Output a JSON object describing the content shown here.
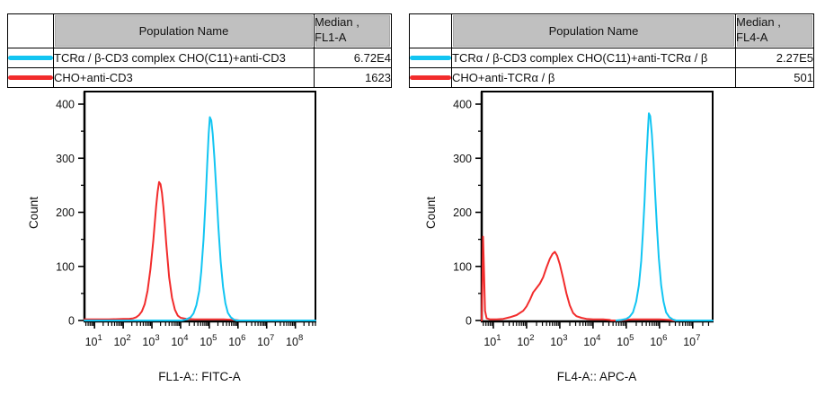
{
  "colors": {
    "cyan_series": "#12C5F2",
    "red_series": "#F22C2C",
    "table_header_bg": "#C0C0C0",
    "axis": "#000000"
  },
  "panels": [
    {
      "table": {
        "population_header": "Population Name",
        "median_header_line1": "Median ,",
        "median_header_line2": "FL1-A",
        "rows": [
          {
            "color": "#12C5F2",
            "population": "TCRα / β-CD3 complex CHO(C11)+anti-CD3",
            "median": "6.72E4"
          },
          {
            "color": "#F22C2C",
            "population": "CHO+anti-CD3",
            "median": "1623"
          }
        ]
      }
    },
    {
      "table": {
        "population_header": "Population Name",
        "median_header_line1": "Median ,",
        "median_header_line2": "FL4-A",
        "rows": [
          {
            "color": "#12C5F2",
            "population": "TCRα / β-CD3 complex CHO(C11)+anti-TCRα / β",
            "median": "2.27E5"
          },
          {
            "color": "#F22C2C",
            "population": "CHO+anti-TCRα / β",
            "median": "501"
          }
        ]
      }
    }
  ],
  "chart_data": [
    {
      "type": "line",
      "subtype": "flow-histogram",
      "xlabel": "FL1-A:: FITC-A",
      "ylabel": "Count",
      "x_scale": "log10",
      "x_log_range": [
        0.65,
        8.7
      ],
      "x_decades": [
        1,
        2,
        3,
        4,
        5,
        6,
        7,
        8
      ],
      "ylim": [
        0,
        400
      ],
      "yticks": [
        0,
        100,
        200,
        300,
        400
      ],
      "y_minor_ticks": [
        50,
        150,
        250,
        350
      ],
      "grid": false,
      "legend": "table-above",
      "series": [
        {
          "id": "red",
          "name": "CHO+anti-CD3",
          "color": "#F22C2C",
          "median": "1623",
          "peak": {
            "log_x": 3.25,
            "count": 256
          },
          "points": [
            [
              0.65,
              2
            ],
            [
              1.0,
              2
            ],
            [
              1.5,
              2
            ],
            [
              2.0,
              3
            ],
            [
              2.2,
              3
            ],
            [
              2.35,
              4
            ],
            [
              2.45,
              6
            ],
            [
              2.55,
              10
            ],
            [
              2.65,
              17
            ],
            [
              2.75,
              30
            ],
            [
              2.85,
              55
            ],
            [
              2.95,
              95
            ],
            [
              3.05,
              148
            ],
            [
              3.1,
              180
            ],
            [
              3.15,
              212
            ],
            [
              3.2,
              238
            ],
            [
              3.25,
              256
            ],
            [
              3.3,
              252
            ],
            [
              3.35,
              236
            ],
            [
              3.4,
              210
            ],
            [
              3.45,
              178
            ],
            [
              3.5,
              142
            ],
            [
              3.6,
              80
            ],
            [
              3.7,
              42
            ],
            [
              3.8,
              20
            ],
            [
              3.9,
              9
            ],
            [
              4.0,
              5
            ],
            [
              4.2,
              3
            ],
            [
              4.5,
              2
            ],
            [
              5.0,
              2
            ],
            [
              5.5,
              2
            ],
            [
              5.9,
              1
            ],
            [
              6.05,
              0
            ],
            [
              8.7,
              0
            ]
          ]
        },
        {
          "id": "cyan",
          "name": "TCRα / β-CD3 complex CHO(C11)+anti-CD3",
          "color": "#12C5F2",
          "median": "6.72E4",
          "peak": {
            "log_x": 5.02,
            "count": 376
          },
          "points": [
            [
              0.65,
              0
            ],
            [
              4.05,
              0
            ],
            [
              4.2,
              2
            ],
            [
              4.35,
              6
            ],
            [
              4.45,
              13
            ],
            [
              4.55,
              28
            ],
            [
              4.65,
              55
            ],
            [
              4.72,
              90
            ],
            [
              4.8,
              150
            ],
            [
              4.87,
              220
            ],
            [
              4.93,
              290
            ],
            [
              4.98,
              345
            ],
            [
              5.02,
              376
            ],
            [
              5.07,
              370
            ],
            [
              5.12,
              345
            ],
            [
              5.18,
              300
            ],
            [
              5.25,
              235
            ],
            [
              5.32,
              170
            ],
            [
              5.4,
              108
            ],
            [
              5.48,
              62
            ],
            [
              5.56,
              32
            ],
            [
              5.65,
              14
            ],
            [
              5.75,
              6
            ],
            [
              5.85,
              2
            ],
            [
              5.95,
              0
            ],
            [
              8.7,
              0
            ]
          ]
        }
      ]
    },
    {
      "type": "line",
      "subtype": "flow-histogram",
      "xlabel": "FL4-A:: APC-A",
      "ylabel": "Count",
      "x_scale": "log10",
      "x_log_range": [
        0.65,
        7.6
      ],
      "x_decades": [
        1,
        2,
        3,
        4,
        5,
        6,
        7
      ],
      "ylim": [
        0,
        400
      ],
      "yticks": [
        0,
        100,
        200,
        300,
        400
      ],
      "y_minor_ticks": [
        50,
        150,
        250,
        350
      ],
      "grid": false,
      "legend": "table-above",
      "series": [
        {
          "id": "red",
          "name": "CHO+anti-TCRα / β",
          "color": "#F22C2C",
          "median": "501",
          "peak": {
            "log_x": 2.85,
            "count": 127
          },
          "points": [
            [
              0.65,
              0
            ],
            [
              0.67,
              60
            ],
            [
              0.69,
              155
            ],
            [
              0.72,
              90
            ],
            [
              0.75,
              18
            ],
            [
              0.8,
              4
            ],
            [
              0.9,
              2
            ],
            [
              1.1,
              2
            ],
            [
              1.3,
              3
            ],
            [
              1.5,
              6
            ],
            [
              1.7,
              10
            ],
            [
              1.9,
              18
            ],
            [
              2.0,
              26
            ],
            [
              2.1,
              38
            ],
            [
              2.2,
              52
            ],
            [
              2.3,
              60
            ],
            [
              2.4,
              68
            ],
            [
              2.5,
              80
            ],
            [
              2.6,
              98
            ],
            [
              2.7,
              114
            ],
            [
              2.78,
              123
            ],
            [
              2.85,
              127
            ],
            [
              2.92,
              120
            ],
            [
              3.0,
              104
            ],
            [
              3.1,
              78
            ],
            [
              3.2,
              50
            ],
            [
              3.3,
              28
            ],
            [
              3.4,
              14
            ],
            [
              3.5,
              8
            ],
            [
              3.65,
              5
            ],
            [
              3.8,
              3
            ],
            [
              4.0,
              2
            ],
            [
              4.3,
              2
            ],
            [
              4.5,
              1
            ],
            [
              4.55,
              0
            ],
            [
              4.8,
              0
            ],
            [
              4.95,
              1
            ],
            [
              5.2,
              2
            ],
            [
              5.6,
              2
            ],
            [
              6.0,
              2
            ],
            [
              6.3,
              1
            ],
            [
              6.4,
              0
            ],
            [
              7.6,
              0
            ]
          ]
        },
        {
          "id": "cyan",
          "name": "TCRα / β-CD3 complex CHO(C11)+anti-TCRα / β",
          "color": "#12C5F2",
          "median": "2.27E5",
          "peak": {
            "log_x": 5.68,
            "count": 383
          },
          "points": [
            [
              4.7,
              0
            ],
            [
              4.85,
              1
            ],
            [
              5.0,
              3
            ],
            [
              5.1,
              7
            ],
            [
              5.2,
              15
            ],
            [
              5.3,
              35
            ],
            [
              5.38,
              65
            ],
            [
              5.45,
              110
            ],
            [
              5.5,
              160
            ],
            [
              5.55,
              220
            ],
            [
              5.6,
              290
            ],
            [
              5.65,
              350
            ],
            [
              5.68,
              383
            ],
            [
              5.72,
              378
            ],
            [
              5.77,
              345
            ],
            [
              5.82,
              295
            ],
            [
              5.87,
              235
            ],
            [
              5.92,
              175
            ],
            [
              5.98,
              115
            ],
            [
              6.05,
              65
            ],
            [
              6.12,
              35
            ],
            [
              6.2,
              15
            ],
            [
              6.3,
              6
            ],
            [
              6.4,
              2
            ],
            [
              6.5,
              0
            ],
            [
              7.6,
              0
            ]
          ]
        }
      ]
    }
  ]
}
